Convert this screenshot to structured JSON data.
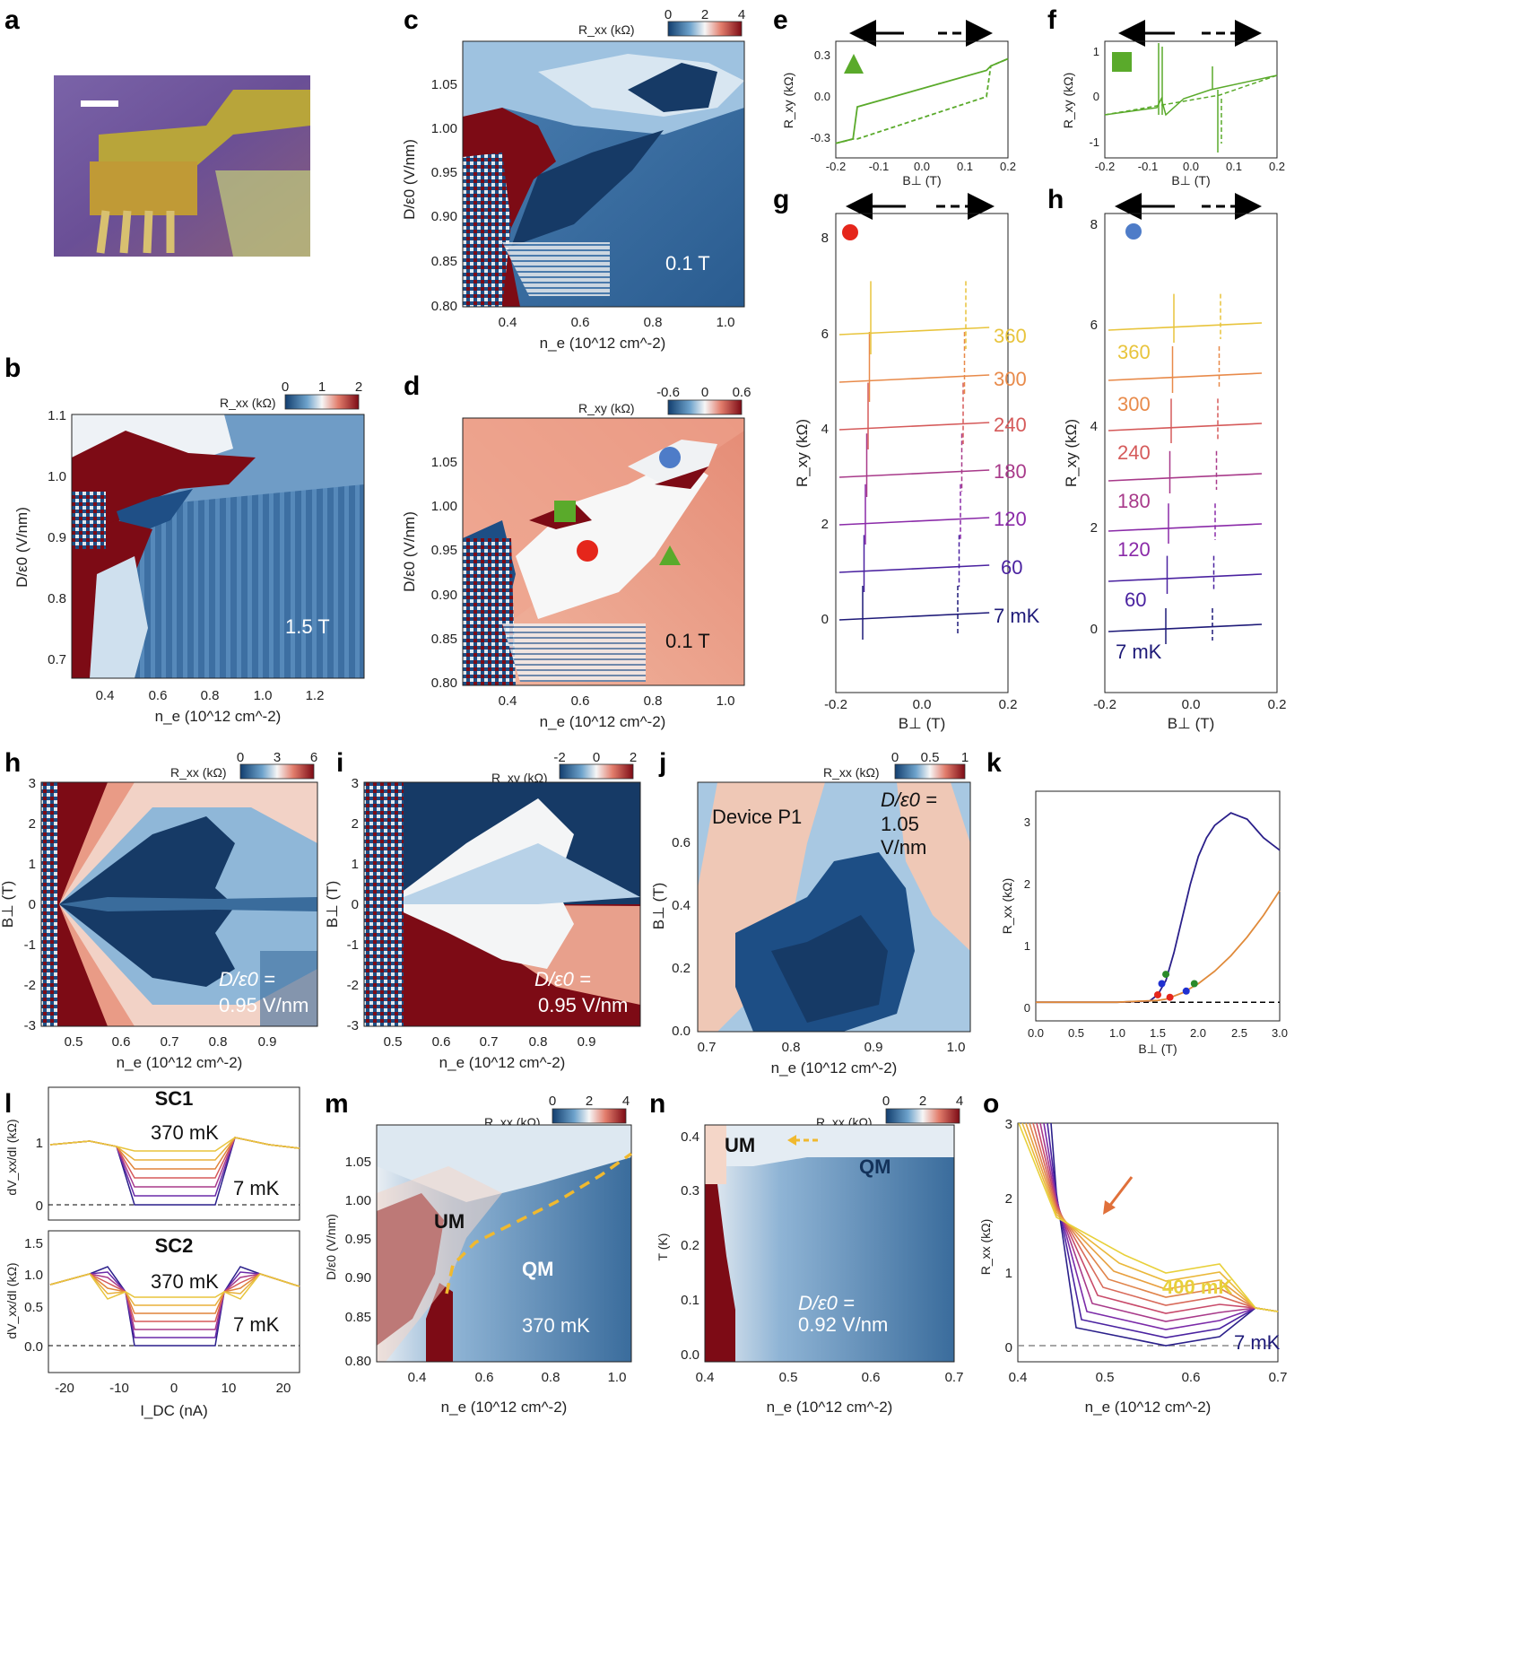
{
  "figure_title": "Multi-panel transport figure",
  "colors": {
    "red": "#8a0c16",
    "blue": "#274f80",
    "white": "#f4f6f8",
    "green": "#5aaa2b",
    "marker_red": "#e5261b",
    "marker_blue": "#4e7cc8",
    "cold": "#1e1a78",
    "warm": "#e8c43c"
  },
  "panels": {
    "a": {
      "label": "a"
    },
    "b": {
      "label": "b",
      "cbar_title": "R_xx (kΩ)",
      "cbar_ticks": [
        "0",
        "1",
        "2"
      ],
      "field": "1.5 T",
      "xticks": [
        "0.4",
        "0.6",
        "0.8",
        "1.0",
        "1.2"
      ],
      "yticks": [
        "1.1",
        "1.0",
        "0.9",
        "0.8",
        "0.7"
      ],
      "xlabel": "n_e (10^12 cm^-2)",
      "ylabel": "D/ε0 (V/nm)"
    },
    "c": {
      "label": "c",
      "cbar_title": "R_xx (kΩ)",
      "cbar_ticks": [
        "0",
        "2",
        "4"
      ],
      "field": "0.1 T",
      "xticks": [
        "0.4",
        "0.6",
        "0.8",
        "1.0"
      ],
      "yticks": [
        "1.05",
        "1.00",
        "0.95",
        "0.90",
        "0.85",
        "0.80"
      ],
      "xlabel": "n_e (10^12 cm^-2)",
      "ylabel": "D/ε0 (V/nm)"
    },
    "d": {
      "label": "d",
      "cbar_title": "R_xy (kΩ)",
      "cbar_ticks": [
        "-0.6",
        "0",
        "0.6"
      ],
      "field": "0.1 T",
      "xticks": [
        "0.4",
        "0.6",
        "0.8",
        "1.0"
      ],
      "yticks": [
        "1.05",
        "1.00",
        "0.95",
        "0.90",
        "0.85",
        "0.80"
      ],
      "xlabel": "n_e (10^12 cm^-2)",
      "ylabel": "D/ε0 (V/nm)"
    },
    "e": {
      "label": "e",
      "xticks": [
        "-0.2",
        "-0.1",
        "0.0",
        "0.1",
        "0.2"
      ],
      "yticks": [
        "0.3",
        "0.0",
        "-0.3"
      ],
      "xlabel": "B⊥ (T)",
      "ylabel": "R_xy (kΩ)"
    },
    "f": {
      "label": "f",
      "xticks": [
        "-0.2",
        "-0.1",
        "0.0",
        "0.1",
        "0.2"
      ],
      "yticks": [
        "1",
        "0",
        "-1"
      ],
      "xlabel": "B⊥ (T)",
      "ylabel": "R_xy (kΩ)"
    },
    "g": {
      "label": "g",
      "xticks": [
        "-0.2",
        "0.0",
        "0.2"
      ],
      "yticks": [
        "8",
        "6",
        "4",
        "2",
        "0"
      ],
      "xlabel": "B⊥ (T)",
      "ylabel": "R_xy (kΩ)",
      "temps": [
        "360",
        "300",
        "240",
        "180",
        "120",
        "60",
        "7 mK"
      ]
    },
    "h": {
      "label": "h",
      "xticks": [
        "-0.2",
        "0.0",
        "0.2"
      ],
      "yticks": [
        "8",
        "6",
        "4",
        "2",
        "0"
      ],
      "xlabel": "B⊥ (T)",
      "ylabel": "R_xy (kΩ)",
      "temps": [
        "360",
        "300",
        "240",
        "180",
        "120",
        "60",
        "7 mK"
      ]
    },
    "h2": {
      "label": "h",
      "cbar_title": "R_xx (kΩ)",
      "cbar_ticks": [
        "0",
        "3",
        "6"
      ],
      "ann1": "D/ε0 =",
      "ann2": "0.95 V/nm",
      "xticks": [
        "0.5",
        "0.6",
        "0.7",
        "0.8",
        "0.9"
      ],
      "yticks": [
        "3",
        "2",
        "1",
        "0",
        "-1",
        "-2",
        "-3"
      ],
      "xlabel": "n_e (10^12 cm^-2)",
      "ylabel": "B⊥ (T)"
    },
    "i": {
      "label": "i",
      "cbar_title": "R_xy (kΩ)",
      "cbar_ticks": [
        "-2",
        "0",
        "2"
      ],
      "ann1": "D/ε0 =",
      "ann2": "0.95 V/nm",
      "xticks": [
        "0.5",
        "0.6",
        "0.7",
        "0.8",
        "0.9"
      ],
      "yticks": [
        "3",
        "2",
        "1",
        "0",
        "-1",
        "-2",
        "-3"
      ],
      "xlabel": "n_e (10^12 cm^-2)",
      "ylabel": "B⊥ (T)"
    },
    "j": {
      "label": "j",
      "cbar_title": "R_xx (kΩ)",
      "cbar_ticks": [
        "0",
        "0.5",
        "1"
      ],
      "device": "Device P1",
      "ann1": "D/ε0 =",
      "ann2": "1.05",
      "ann3": "V/nm",
      "xticks": [
        "0.7",
        "0.8",
        "0.9",
        "1.0"
      ],
      "yticks": [
        "0.6",
        "0.4",
        "0.2",
        "0.0"
      ],
      "xlabel": "n_e (10^12 cm^-2)",
      "ylabel": "B⊥ (T)"
    },
    "k": {
      "label": "k",
      "xticks": [
        "0.0",
        "0.5",
        "1.0",
        "1.5",
        "2.0",
        "2.5",
        "3.0"
      ],
      "yticks": [
        "3",
        "2",
        "1",
        "0"
      ],
      "xlabel": "B⊥ (T)",
      "ylabel": "R_xx (kΩ)"
    },
    "l": {
      "label": "l",
      "sc1": "SC1",
      "sc2": "SC2",
      "hot": "370 mK",
      "cold": "7 mK",
      "yticks_top": [
        "1",
        "0"
      ],
      "yticks_bot": [
        "1.5",
        "1.0",
        "0.5",
        "0.0"
      ],
      "xticks": [
        "-20",
        "-10",
        "0",
        "10",
        "20"
      ],
      "xlabel": "I_DC (nA)",
      "ylabel": "dV_xx/dI (kΩ)"
    },
    "m": {
      "label": "m",
      "cbar_title": "R_xx (kΩ)",
      "cbar_ticks": [
        "0",
        "2",
        "4"
      ],
      "um": "UM",
      "qm": "QM",
      "temp": "370 mK",
      "xticks": [
        "0.4",
        "0.6",
        "0.8",
        "1.0"
      ],
      "yticks": [
        "1.05",
        "1.00",
        "0.95",
        "0.90",
        "0.85",
        "0.80"
      ],
      "xlabel": "n_e (10^12 cm^-2)",
      "ylabel": "D/ε0 (V/nm)"
    },
    "n": {
      "label": "n",
      "cbar_title": "R_xx (kΩ)",
      "cbar_ticks": [
        "0",
        "2",
        "4"
      ],
      "um": "UM",
      "qm": "QM",
      "ann1": "D/ε0 =",
      "ann2": "0.92 V/nm",
      "xticks": [
        "0.4",
        "0.5",
        "0.6",
        "0.7"
      ],
      "yticks": [
        "0.4",
        "0.3",
        "0.2",
        "0.1",
        "0.0"
      ],
      "xlabel": "n_e (10^12 cm^-2)",
      "ylabel": "T (K)"
    },
    "o": {
      "label": "o",
      "hot": "400 mK",
      "cold": "7 mK",
      "xticks": [
        "0.4",
        "0.5",
        "0.6",
        "0.7"
      ],
      "yticks": [
        "3",
        "2",
        "1",
        "0"
      ],
      "xlabel": "n_e (10^12 cm^-2)",
      "ylabel": "R_xx (kΩ)"
    }
  },
  "chart_data": [
    {
      "panel": "k",
      "type": "line",
      "title": "",
      "xlabel": "B⊥ (T)",
      "ylabel": "R_xx (kΩ)",
      "xlim": [
        0,
        3
      ],
      "ylim": [
        -0.3,
        3.4
      ],
      "series": [
        {
          "name": "dark-blue",
          "x": [
            0,
            1.0,
            1.4,
            1.5,
            1.6,
            1.7,
            1.8,
            1.9,
            2.0,
            2.1,
            2.2,
            2.3,
            2.4,
            2.5,
            2.6,
            2.7,
            2.8,
            2.9,
            3.0
          ],
          "values": [
            0,
            0,
            0.02,
            0.12,
            0.35,
            0.8,
            1.35,
            1.9,
            2.35,
            2.65,
            2.85,
            2.95,
            3.05,
            3.0,
            2.95,
            2.8,
            2.65,
            2.55,
            2.45
          ]
        },
        {
          "name": "orange",
          "x": [
            0,
            1.0,
            1.5,
            1.6,
            1.8,
            2.0,
            2.2,
            2.4,
            2.6,
            2.8,
            3.0
          ],
          "values": [
            0,
            0,
            0.03,
            0.05,
            0.15,
            0.3,
            0.5,
            0.75,
            1.05,
            1.4,
            1.8
          ]
        }
      ]
    },
    {
      "panel": "e",
      "type": "line",
      "title": "",
      "xlabel": "B⊥ (T)",
      "ylabel": "R_xy (kΩ)",
      "xlim": [
        -0.2,
        0.2
      ],
      "ylim": [
        -0.4,
        0.4
      ],
      "series": [
        {
          "name": "sweep-up",
          "x": [
            -0.2,
            -0.16,
            -0.15,
            0.15,
            0.16,
            0.2
          ],
          "values": [
            -0.3,
            -0.27,
            -0.05,
            0.2,
            0.23,
            0.28
          ]
        },
        {
          "name": "sweep-down",
          "x": [
            -0.2,
            -0.16,
            -0.15,
            0.15,
            0.16,
            0.2
          ],
          "values": [
            -0.3,
            -0.27,
            -0.27,
            0.02,
            0.23,
            0.28
          ]
        }
      ]
    }
  ]
}
